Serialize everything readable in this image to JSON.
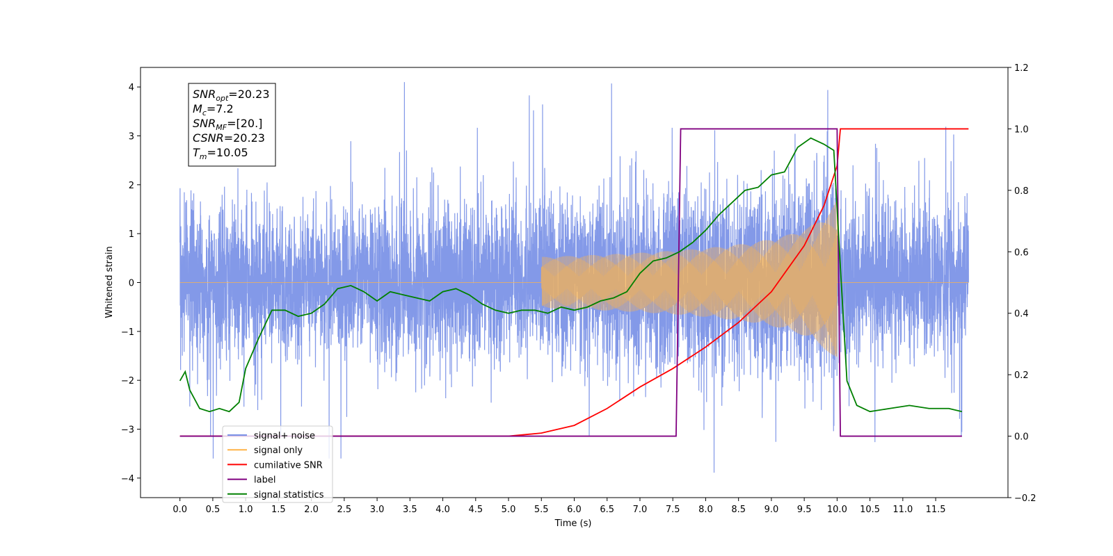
{
  "chart_data": {
    "type": "line",
    "xlabel": "Time (s)",
    "ylabel": "Whitened strain",
    "xlim": [
      -0.6,
      12.6
    ],
    "ylim": [
      -4.4,
      4.4
    ],
    "y2lim": [
      -0.2,
      1.2
    ],
    "xticks": [
      "0.0",
      "0.5",
      "1.0",
      "1.5",
      "2.0",
      "2.5",
      "3.0",
      "3.5",
      "4.0",
      "4.5",
      "5.0",
      "5.5",
      "6.0",
      "6.5",
      "7.0",
      "7.5",
      "8.0",
      "8.5",
      "9.0",
      "9.5",
      "10.0",
      "10.5",
      "11.0",
      "11.5"
    ],
    "yticks": [
      "4",
      "3",
      "2",
      "1",
      "0",
      "−1",
      "−2",
      "−3",
      "−4"
    ],
    "y2ticks": [
      "1.2",
      "1.0",
      "0.8",
      "0.6",
      "0.4",
      "0.2",
      "0.0",
      "−0.2"
    ],
    "annotation": {
      "lines": [
        {
          "main": "SNR",
          "sub": "opt",
          "rest": "=20.23"
        },
        {
          "main": "M",
          "sub": "c",
          "rest": "=7.2"
        },
        {
          "main": "SNR",
          "sub": "MF",
          "rest": "=[20.]"
        },
        {
          "main": "CSNR",
          "sub": "",
          "rest": "=20.23"
        },
        {
          "main": "T",
          "sub": "m",
          "rest": "=10.05"
        }
      ]
    },
    "legend": {
      "placement": "lower-left",
      "entries": [
        {
          "label": "signal+ noise",
          "color": "#7890e6"
        },
        {
          "label": "signal only",
          "color": "#ffb347"
        },
        {
          "label": "cumilative SNR",
          "color": "#ff0000"
        },
        {
          "label": "label",
          "color": "#800080"
        },
        {
          "label": "signal statistics",
          "color": "#008000"
        }
      ]
    },
    "series": [
      {
        "name": "signal+ noise",
        "axis": "left",
        "kind": "noise",
        "t_start": 0.0,
        "t_end": 12.0,
        "envelope": [
          1.7,
          2.5
        ]
      },
      {
        "name": "signal only",
        "axis": "left",
        "kind": "chirp",
        "t_merger": 10.0,
        "onset": 5.5,
        "peak_amplitude": 1.7
      },
      {
        "name": "cumilative SNR",
        "axis": "right",
        "x": [
          0.0,
          5.0,
          5.5,
          6.0,
          6.5,
          7.0,
          7.5,
          8.0,
          8.5,
          9.0,
          9.5,
          9.8,
          10.0,
          10.05,
          11.0,
          12.0
        ],
        "values": [
          0.0,
          0.0,
          0.01,
          0.035,
          0.09,
          0.16,
          0.22,
          0.29,
          0.37,
          0.47,
          0.62,
          0.75,
          0.88,
          1.0,
          1.0,
          1.0
        ]
      },
      {
        "name": "label",
        "axis": "right",
        "x": [
          0.0,
          7.55,
          7.62,
          10.0,
          10.05,
          11.9
        ],
        "values": [
          0.0,
          0.0,
          1.0,
          1.0,
          0.0,
          0.0
        ]
      },
      {
        "name": "signal statistics",
        "axis": "right",
        "x": [
          0.0,
          0.08,
          0.15,
          0.3,
          0.45,
          0.6,
          0.75,
          0.9,
          1.0,
          1.2,
          1.4,
          1.6,
          1.8,
          2.0,
          2.2,
          2.4,
          2.6,
          2.8,
          3.0,
          3.2,
          3.4,
          3.6,
          3.8,
          4.0,
          4.2,
          4.4,
          4.6,
          4.8,
          5.0,
          5.2,
          5.4,
          5.6,
          5.8,
          6.0,
          6.2,
          6.4,
          6.6,
          6.8,
          7.0,
          7.2,
          7.4,
          7.6,
          7.8,
          8.0,
          8.2,
          8.4,
          8.6,
          8.8,
          9.0,
          9.2,
          9.4,
          9.6,
          9.8,
          9.95,
          10.05,
          10.15,
          10.3,
          10.5,
          10.8,
          11.1,
          11.4,
          11.7,
          11.9
        ],
        "values": [
          0.18,
          0.21,
          0.15,
          0.09,
          0.08,
          0.09,
          0.08,
          0.11,
          0.22,
          0.32,
          0.41,
          0.41,
          0.39,
          0.4,
          0.43,
          0.48,
          0.49,
          0.47,
          0.44,
          0.47,
          0.46,
          0.45,
          0.44,
          0.47,
          0.48,
          0.46,
          0.43,
          0.41,
          0.4,
          0.41,
          0.41,
          0.4,
          0.42,
          0.41,
          0.42,
          0.44,
          0.45,
          0.47,
          0.53,
          0.57,
          0.58,
          0.6,
          0.63,
          0.67,
          0.72,
          0.76,
          0.8,
          0.81,
          0.85,
          0.86,
          0.94,
          0.97,
          0.95,
          0.93,
          0.55,
          0.18,
          0.1,
          0.08,
          0.09,
          0.1,
          0.09,
          0.09,
          0.08
        ]
      }
    ]
  }
}
